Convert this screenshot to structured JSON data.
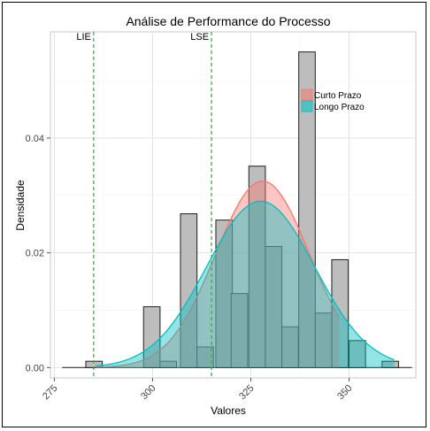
{
  "chart_data": {
    "type": "bar",
    "title": "Análise de Performance do Processo",
    "xlabel": "Valores",
    "ylabel": "Densidade",
    "xlim": [
      274,
      367
    ],
    "ylim": [
      -0.0018,
      0.0585
    ],
    "x_ticks": [
      275,
      300,
      325,
      350
    ],
    "x_tick_labels": [
      "275",
      "300",
      "325",
      "350"
    ],
    "y_ticks": [
      0.0,
      0.02,
      0.04
    ],
    "y_tick_labels": [
      "0.00",
      "0.02",
      "0.04"
    ],
    "grid": true,
    "histogram": {
      "bin_width": 4.2,
      "bins": [
        {
          "x": 285.1,
          "density": 0.0011
        },
        {
          "x": 299.8,
          "density": 0.0106
        },
        {
          "x": 304.0,
          "density": 0.0011
        },
        {
          "x": 309.2,
          "density": 0.0268
        },
        {
          "x": 313.4,
          "density": 0.0036
        },
        {
          "x": 318.2,
          "density": 0.0257
        },
        {
          "x": 322.1,
          "density": 0.0129
        },
        {
          "x": 326.6,
          "density": 0.0351
        },
        {
          "x": 330.8,
          "density": 0.0211
        },
        {
          "x": 335.0,
          "density": 0.0071
        },
        {
          "x": 339.3,
          "density": 0.055
        },
        {
          "x": 343.5,
          "density": 0.0095
        },
        {
          "x": 347.7,
          "density": 0.0188
        },
        {
          "x": 352.1,
          "density": 0.0047
        },
        {
          "x": 360.5,
          "density": 0.0011
        }
      ]
    },
    "baseline": {
      "x_start": 277.0,
      "x_end": 366.0,
      "value": 0
    },
    "series": [
      {
        "name": "Curto Prazo",
        "color": "#f8766d",
        "mean": 328.0,
        "sd": 12.0,
        "peak": 0.0325,
        "x_range": [
          285.5,
          347.5
        ]
      },
      {
        "name": "Longo Prazo",
        "color": "#00bfc4",
        "mean": 327.5,
        "sd": 13.75,
        "peak": 0.029,
        "x_range": [
          285.5,
          361.5
        ]
      }
    ],
    "vlines": [
      {
        "label": "LIE",
        "x": 285.0,
        "color": "#3aaf4a"
      },
      {
        "label": "LSE",
        "x": 315.0,
        "color": "#3aaf4a"
      }
    ],
    "legend_placement": "top-right"
  }
}
